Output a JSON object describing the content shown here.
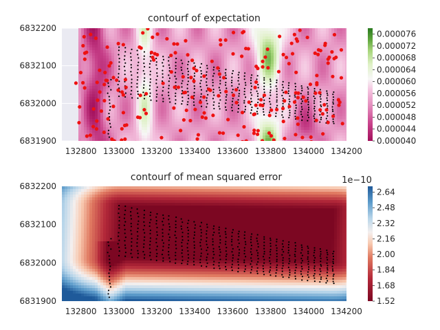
{
  "chart_data": [
    {
      "type": "heatmap",
      "title": "contourf of expectation",
      "xlim": [
        132700,
        134200
      ],
      "ylim": [
        6831900,
        6832200
      ],
      "x_ticks": [
        "132800",
        "133000",
        "133200",
        "133400",
        "133600",
        "133800",
        "134000",
        "134200"
      ],
      "y_ticks": [
        "6831900",
        "6832000",
        "6832100",
        "6832200"
      ],
      "colormap": "PiYG",
      "colorbar_range": [
        4e-05,
        7.8e-05
      ],
      "colorbar_ticks": [
        "0.000040",
        "0.000044",
        "0.000048",
        "0.000052",
        "0.000056",
        "0.000060",
        "0.000064",
        "0.000068",
        "0.000072",
        "0.000076"
      ],
      "overlay": [
        "red scatter points",
        "black survey points"
      ]
    },
    {
      "type": "heatmap",
      "title": "contourf of mean squared error",
      "xlim": [
        132700,
        134200
      ],
      "ylim": [
        6831900,
        6832200
      ],
      "x_ticks": [
        "132800",
        "133000",
        "133200",
        "133400",
        "133600",
        "133800",
        "134000",
        "134200"
      ],
      "y_ticks": [
        "6831900",
        "6832000",
        "6832100",
        "6832200"
      ],
      "colormap": "RdBu",
      "colorbar_range": [
        1.52,
        2.7
      ],
      "colorbar_ticks": [
        "1.52",
        "1.68",
        "1.84",
        "2.00",
        "2.16",
        "2.32",
        "2.48",
        "2.64"
      ],
      "colorbar_offset": "1e−10",
      "overlay": [
        "black survey points"
      ]
    }
  ],
  "colors": {
    "pink_dark": "#a3105c",
    "white": "#f7f7f7",
    "green_dark": "#2a7a1f",
    "red_dark": "#7c0722",
    "blue_dark": "#1f5a9a",
    "scatter_red": "#ee1111"
  }
}
